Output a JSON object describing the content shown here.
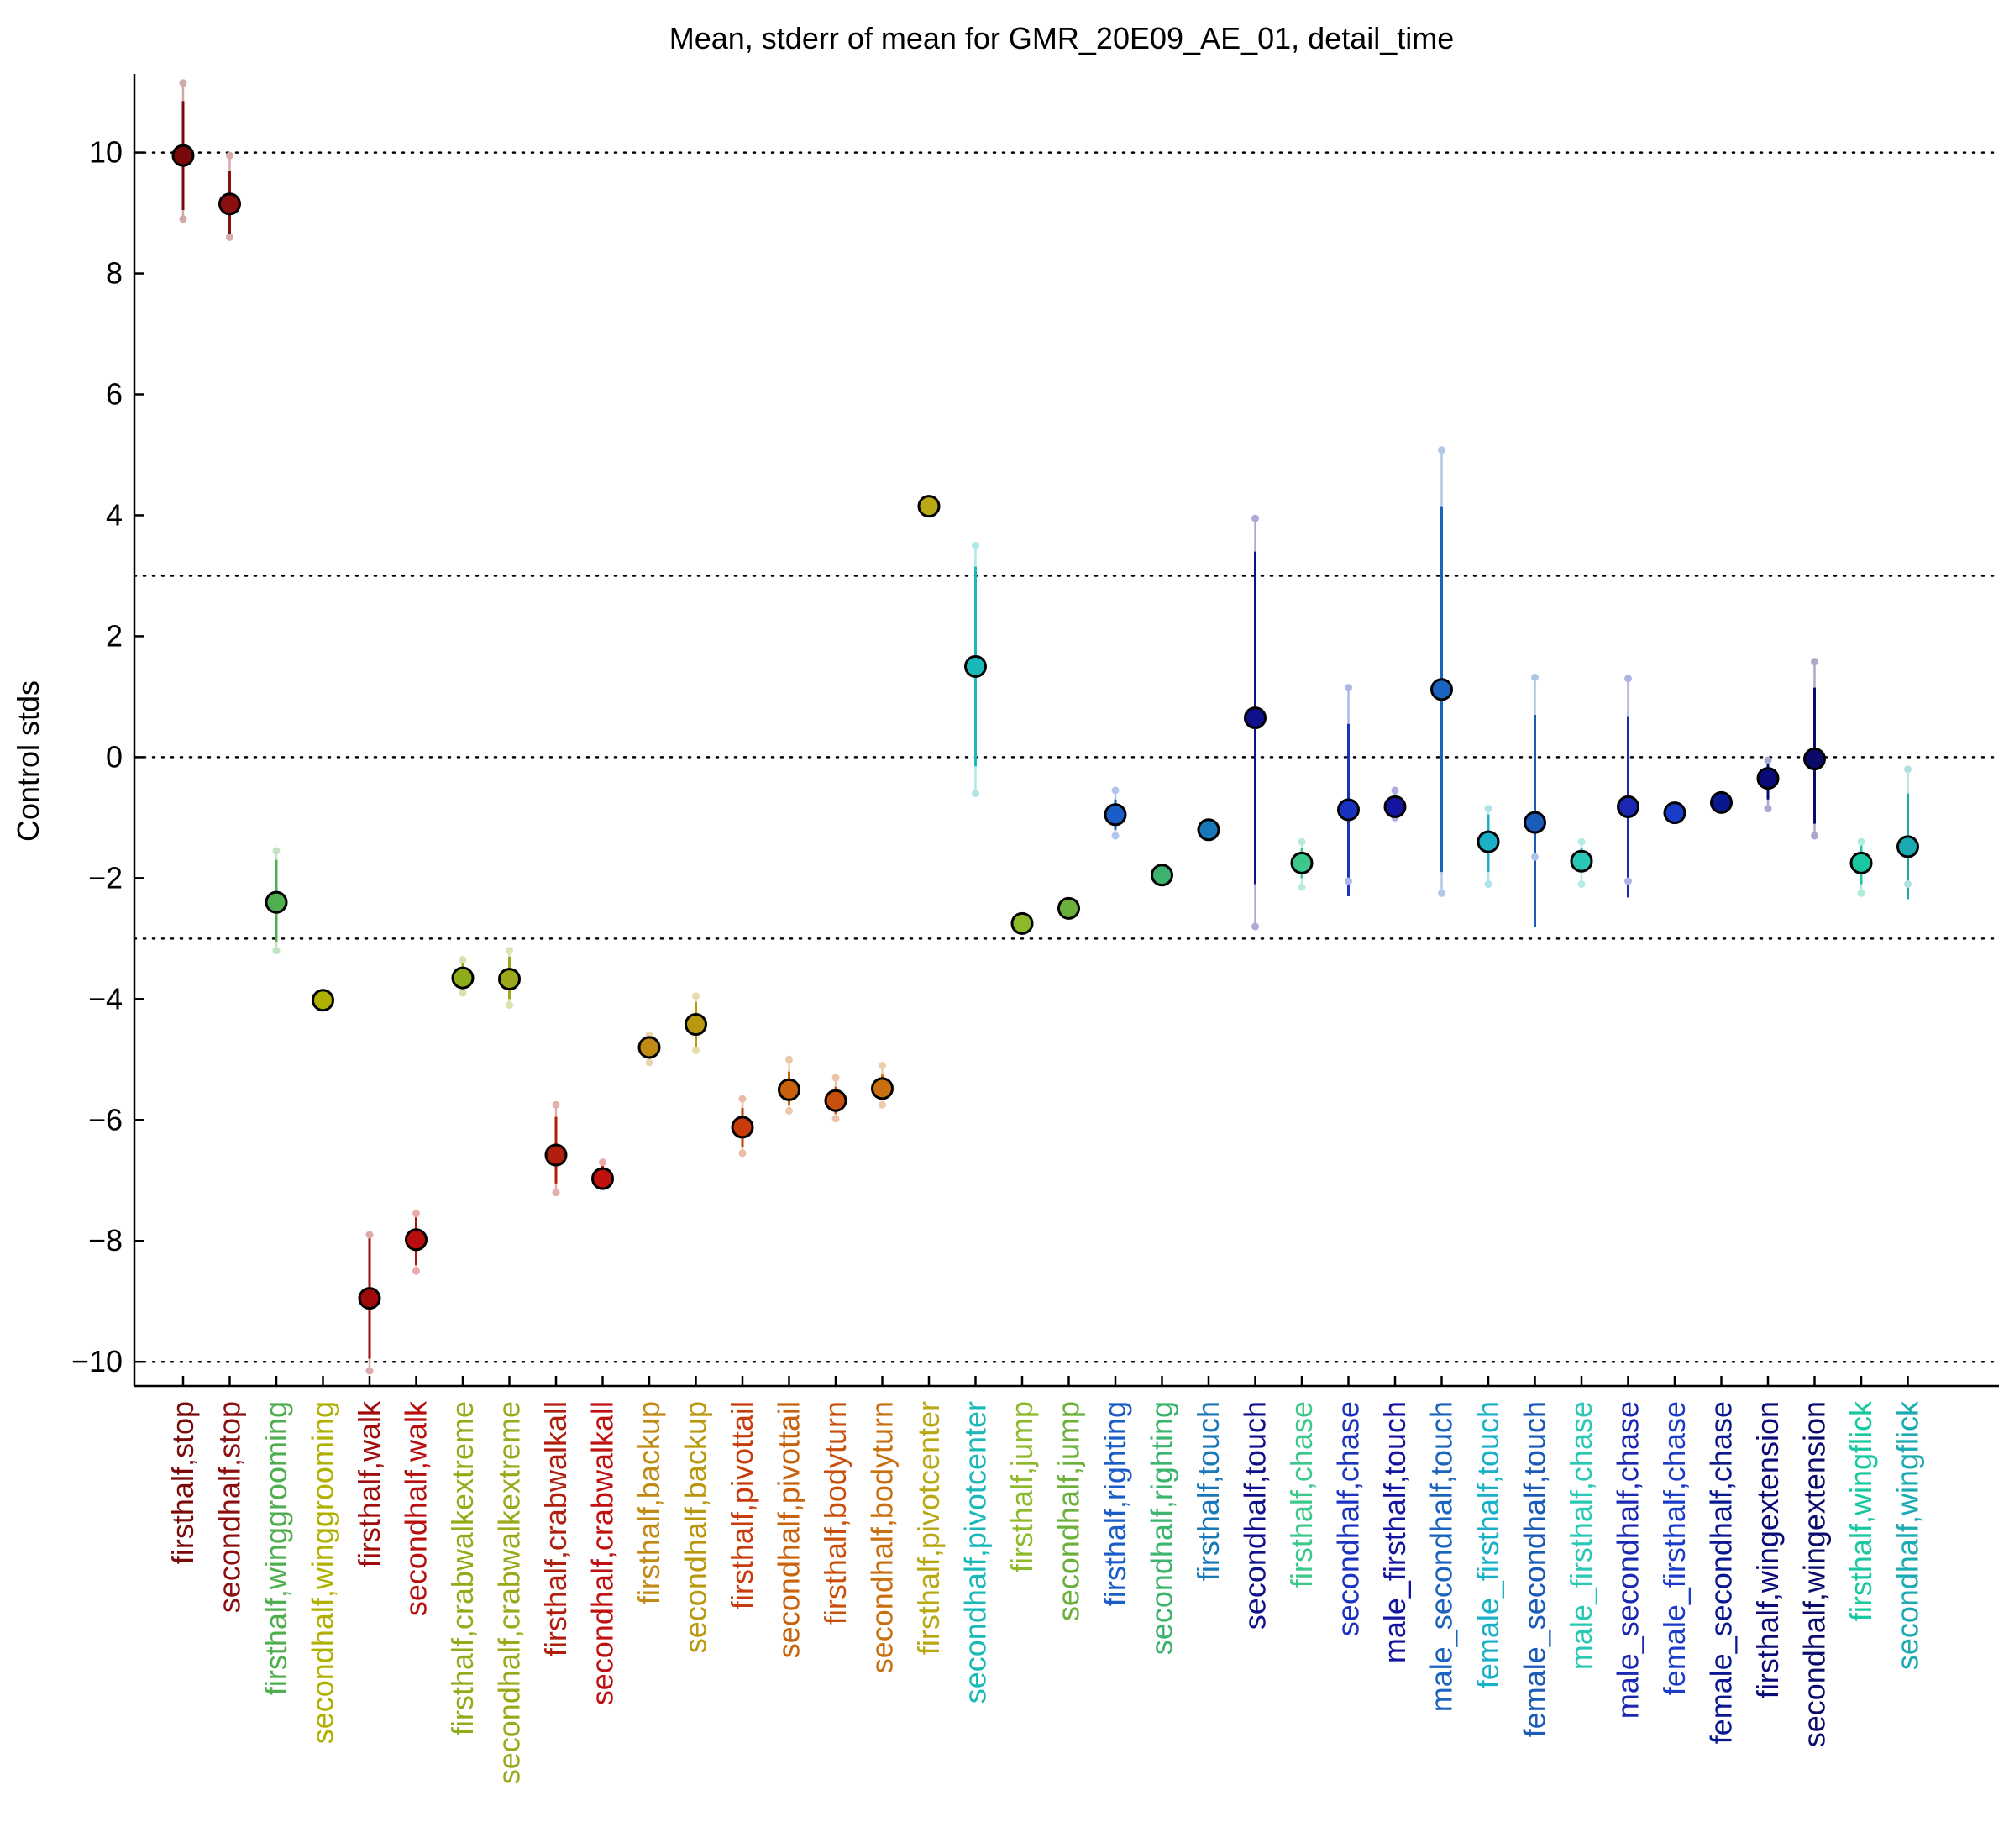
{
  "chart_data": {
    "type": "scatter",
    "title": "Mean, stderr of mean for GMR_20E09_AE_01, detail_time",
    "xlabel": "",
    "ylabel": "Control stds",
    "ylim": [
      -10.4,
      11.3
    ],
    "yticks": [
      -10,
      -8,
      -6,
      -4,
      -2,
      0,
      2,
      4,
      6,
      8,
      10
    ],
    "ytick_labels": [
      "−10",
      "−8",
      "−6",
      "−4",
      "−2",
      "0",
      "2",
      "4",
      "6",
      "8",
      "10"
    ],
    "reference_lines": [
      -10,
      -3,
      0,
      3,
      10
    ],
    "reference_line_style": "dotted",
    "grid": false,
    "legend": "none",
    "points": [
      {
        "label": "firsthalf,stop",
        "mean": 9.95,
        "err_low": 9.05,
        "err_high": 10.85,
        "range_low": 8.9,
        "range_high": 11.15,
        "color": "#7a0a0a"
      },
      {
        "label": "secondhalf,stop",
        "mean": 9.15,
        "err_low": 8.65,
        "err_high": 9.7,
        "range_low": 8.6,
        "range_high": 9.95,
        "color": "#8b0f0f"
      },
      {
        "label": "firsthalf,winggrooming",
        "mean": -2.4,
        "err_low": -3.05,
        "err_high": -1.7,
        "range_low": -3.2,
        "range_high": -1.55,
        "color": "#4fae4f"
      },
      {
        "label": "secondhalf,winggrooming",
        "mean": -4.02,
        "err_low": -4.1,
        "err_high": -3.95,
        "range_low": -4.12,
        "range_high": -3.92,
        "color": "#b0b000"
      },
      {
        "label": "firsthalf,walk",
        "mean": -8.95,
        "err_low": -9.95,
        "err_high": -7.95,
        "range_low": -10.15,
        "range_high": -7.9,
        "color": "#a00c0c"
      },
      {
        "label": "secondhalf,walk",
        "mean": -7.98,
        "err_low": -8.4,
        "err_high": -7.6,
        "range_low": -8.5,
        "range_high": -7.55,
        "color": "#b80e0e"
      },
      {
        "label": "firsthalf,crabwalkextreme",
        "mean": -3.65,
        "err_low": -3.9,
        "err_high": -3.4,
        "range_low": -3.9,
        "range_high": -3.35,
        "color": "#8fad1a"
      },
      {
        "label": "secondhalf,crabwalkextreme",
        "mean": -3.67,
        "err_low": -4.0,
        "err_high": -3.3,
        "range_low": -4.1,
        "range_high": -3.2,
        "color": "#9aa81a"
      },
      {
        "label": "firsthalf,crabwalkall",
        "mean": -6.58,
        "err_low": -7.05,
        "err_high": -5.95,
        "range_low": -7.2,
        "range_high": -5.75,
        "color": "#b01e0e"
      },
      {
        "label": "secondhalf,crabwalkall",
        "mean": -6.97,
        "err_low": -7.0,
        "err_high": -6.75,
        "range_low": -7.0,
        "range_high": -6.7,
        "color": "#c01010"
      },
      {
        "label": "firsthalf,backup",
        "mean": -4.8,
        "err_low": -5.0,
        "err_high": -4.6,
        "range_low": -5.05,
        "range_high": -4.6,
        "color": "#c08a14"
      },
      {
        "label": "secondhalf,backup",
        "mean": -4.42,
        "err_low": -4.8,
        "err_high": -4.05,
        "range_low": -4.85,
        "range_high": -3.95,
        "color": "#b8980f"
      },
      {
        "label": "firsthalf,pivottail",
        "mean": -6.12,
        "err_low": -6.45,
        "err_high": -5.8,
        "range_low": -6.55,
        "range_high": -5.65,
        "color": "#c83c0c"
      },
      {
        "label": "secondhalf,pivottail",
        "mean": -5.5,
        "err_low": -5.75,
        "err_high": -5.2,
        "range_low": -5.85,
        "range_high": -5.0,
        "color": "#c8620c"
      },
      {
        "label": "firsthalf,bodyturn",
        "mean": -5.68,
        "err_low": -5.9,
        "err_high": -5.45,
        "range_low": -5.98,
        "range_high": -5.3,
        "color": "#c8500c"
      },
      {
        "label": "secondhalf,bodyturn",
        "mean": -5.48,
        "err_low": -5.65,
        "err_high": -5.25,
        "range_low": -5.75,
        "range_high": -5.1,
        "color": "#c87010"
      },
      {
        "label": "firsthalf,pivotcenter",
        "mean": 4.15,
        "err_low": 4.12,
        "err_high": 4.2,
        "range_low": 4.1,
        "range_high": 4.22,
        "color": "#b8a814"
      },
      {
        "label": "secondhalf,pivotcenter",
        "mean": 1.5,
        "err_low": -0.15,
        "err_high": 3.15,
        "range_low": -0.6,
        "range_high": 3.5,
        "color": "#1ab8b8"
      },
      {
        "label": "firsthalf,jump",
        "mean": -2.75,
        "err_low": -2.8,
        "err_high": -2.7,
        "range_low": -2.82,
        "range_high": -2.68,
        "color": "#8db82a"
      },
      {
        "label": "secondhalf,jump",
        "mean": -2.5,
        "err_low": -2.55,
        "err_high": -2.45,
        "range_low": -2.57,
        "range_high": -2.43,
        "color": "#6ab03a"
      },
      {
        "label": "firsthalf,righting",
        "mean": -0.95,
        "err_low": -1.2,
        "err_high": -0.7,
        "range_low": -1.3,
        "range_high": -0.55,
        "color": "#1a5cc8"
      },
      {
        "label": "secondhalf,righting",
        "mean": -1.95,
        "err_low": -2.0,
        "err_high": -1.9,
        "range_low": -2.02,
        "range_high": -1.88,
        "color": "#3cb46e"
      },
      {
        "label": "firsthalf,touch",
        "mean": -1.2,
        "err_low": -1.25,
        "err_high": -1.15,
        "range_low": -1.27,
        "range_high": -1.13,
        "color": "#1a78b8"
      },
      {
        "label": "secondhalf,touch",
        "mean": 0.65,
        "err_low": -2.1,
        "err_high": 3.4,
        "range_low": -2.8,
        "range_high": 3.95,
        "color": "#10108a"
      },
      {
        "label": "firsthalf,chase",
        "mean": -1.75,
        "err_low": -2.0,
        "err_high": -1.5,
        "range_low": -2.15,
        "range_high": -1.4,
        "color": "#3cc88a"
      },
      {
        "label": "secondhalf,chase",
        "mean": -0.87,
        "err_low": -2.3,
        "err_high": 0.55,
        "range_low": -2.05,
        "range_high": 1.15,
        "color": "#1a32c0"
      },
      {
        "label": "male_firsthalf,touch",
        "mean": -0.82,
        "err_low": -0.95,
        "err_high": -0.65,
        "range_low": -1.0,
        "range_high": -0.55,
        "color": "#1414a0"
      },
      {
        "label": "male_secondhalf,touch",
        "mean": 1.12,
        "err_low": -1.9,
        "err_high": 4.15,
        "range_low": -2.25,
        "range_high": 5.08,
        "color": "#1a64c0"
      },
      {
        "label": "female_firsthalf,touch",
        "mean": -1.4,
        "err_low": -1.9,
        "err_high": -0.95,
        "range_low": -2.1,
        "range_high": -0.85,
        "color": "#1ab0c8"
      },
      {
        "label": "female_secondhalf,touch",
        "mean": -1.08,
        "err_low": -2.8,
        "err_high": 0.7,
        "range_low": -1.65,
        "range_high": 1.32,
        "color": "#1a5ab8"
      },
      {
        "label": "male_firsthalf,chase",
        "mean": -1.72,
        "err_low": -1.9,
        "err_high": -1.5,
        "range_low": -2.1,
        "range_high": -1.4,
        "color": "#28c8b4"
      },
      {
        "label": "male_secondhalf,chase",
        "mean": -0.82,
        "err_low": -2.32,
        "err_high": 0.68,
        "range_low": -2.05,
        "range_high": 1.3,
        "color": "#1a28b4"
      },
      {
        "label": "female_firsthalf,chase",
        "mean": -0.92,
        "err_low": -0.97,
        "err_high": -0.87,
        "range_low": -0.99,
        "range_high": -0.85,
        "color": "#1a3cc8"
      },
      {
        "label": "female_secondhalf,chase",
        "mean": -0.75,
        "err_low": -0.8,
        "err_high": -0.7,
        "range_low": -0.82,
        "range_high": -0.68,
        "color": "#0a1890"
      },
      {
        "label": "firsthalf,wingextension",
        "mean": -0.35,
        "err_low": -0.7,
        "err_high": 0.0,
        "range_low": -0.85,
        "range_high": -0.05,
        "color": "#0a0a78"
      },
      {
        "label": "secondhalf,wingextension",
        "mean": -0.03,
        "err_low": -1.1,
        "err_high": 1.15,
        "range_low": -1.3,
        "range_high": 1.58,
        "color": "#0a0a6a"
      },
      {
        "label": "firsthalf,wingflick",
        "mean": -1.75,
        "err_low": -2.1,
        "err_high": -1.45,
        "range_low": -2.25,
        "range_high": -1.4,
        "color": "#1ac8a0"
      },
      {
        "label": "secondhalf,wingflick",
        "mean": -1.48,
        "err_low": -2.35,
        "err_high": -0.6,
        "range_low": -2.1,
        "range_high": -0.2,
        "color": "#1aaab0"
      }
    ]
  }
}
